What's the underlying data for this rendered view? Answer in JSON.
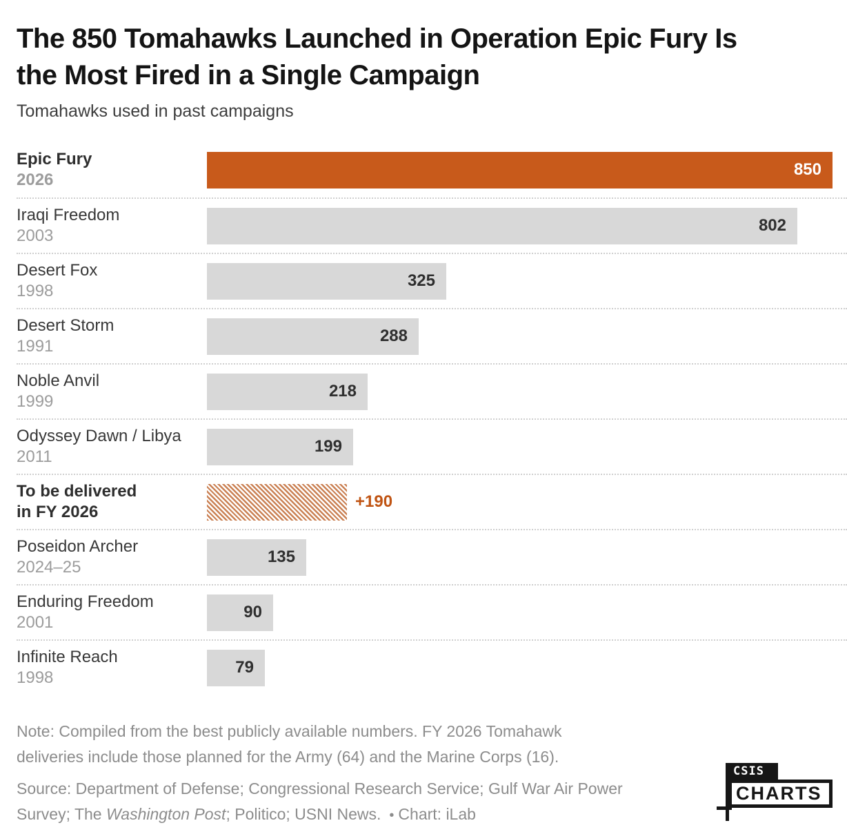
{
  "header": {
    "title_line1": "The 850 Tomahawks Launched in Operation Epic Fury Is",
    "title_line2": "the Most Fired in a Single Campaign",
    "subtitle": "Tomahawks used in past campaigns"
  },
  "chart_data": {
    "type": "bar",
    "orientation": "horizontal",
    "title": "The 850 Tomahawks Launched in Operation Epic Fury Is the Most Fired in a Single Campaign",
    "subtitle": "Tomahawks used in past campaigns",
    "xlim": [
      0,
      850
    ],
    "grid": false,
    "legend": false,
    "rows": [
      {
        "campaign": "Epic Fury",
        "detail": "2026",
        "detail_type": "year",
        "value": 850,
        "value_label": "850",
        "bar": "orange",
        "emphasis": true,
        "value_placement": "inside",
        "value_style": "white"
      },
      {
        "campaign": "Iraqi Freedom",
        "detail": "2003",
        "detail_type": "year",
        "value": 802,
        "value_label": "802",
        "bar": "gray",
        "emphasis": false,
        "value_placement": "inside",
        "value_style": "dark"
      },
      {
        "campaign": "Desert Fox",
        "detail": "1998",
        "detail_type": "year",
        "value": 325,
        "value_label": "325",
        "bar": "gray",
        "emphasis": false,
        "value_placement": "inside",
        "value_style": "dark"
      },
      {
        "campaign": "Desert Storm",
        "detail": "1991",
        "detail_type": "year",
        "value": 288,
        "value_label": "288",
        "bar": "gray",
        "emphasis": false,
        "value_placement": "inside",
        "value_style": "dark"
      },
      {
        "campaign": "Noble Anvil",
        "detail": "1999",
        "detail_type": "year",
        "value": 218,
        "value_label": "218",
        "bar": "gray",
        "emphasis": false,
        "value_placement": "inside",
        "value_style": "dark"
      },
      {
        "campaign": "Odyssey Dawn / Libya",
        "detail": "2011",
        "detail_type": "year",
        "value": 199,
        "value_label": "199",
        "bar": "gray",
        "emphasis": false,
        "value_placement": "inside",
        "value_style": "dark"
      },
      {
        "campaign": "To be delivered",
        "detail": "in FY 2026",
        "detail_type": "label",
        "value": 190,
        "value_label": "+190",
        "bar": "hatch",
        "emphasis": true,
        "value_placement": "outside",
        "value_style": "orange"
      },
      {
        "campaign": "Poseidon Archer",
        "detail": "2024–25",
        "detail_type": "year",
        "value": 135,
        "value_label": "135",
        "bar": "gray",
        "emphasis": false,
        "value_placement": "inside",
        "value_style": "dark"
      },
      {
        "campaign": "Enduring Freedom",
        "detail": "2001",
        "detail_type": "year",
        "value": 90,
        "value_label": "90",
        "bar": "gray",
        "emphasis": false,
        "value_placement": "inside",
        "value_style": "dark"
      },
      {
        "campaign": "Infinite Reach",
        "detail": "1998",
        "detail_type": "year",
        "value": 79,
        "value_label": "79",
        "bar": "gray",
        "emphasis": false,
        "value_placement": "inside",
        "value_style": "dark"
      }
    ]
  },
  "footer": {
    "note_line1": "Note: Compiled from the best publicly available numbers. FY 2026 Tomahawk",
    "note_line2": "deliveries include those planned for the Army (64) and the Marine Corps (16).",
    "source_line1": "Source: Department of Defense; Congressional Research Service; Gulf War Air Power",
    "source_line2_pre": "Survey; The ",
    "source_line2_italic": "Washington Post",
    "source_line2_post": "; Politico; USNI News.",
    "source_bullet": "•",
    "source_credit": "Chart: iLab"
  },
  "logo": {
    "top": "CSIS",
    "bottom": "CHARTS"
  },
  "colors": {
    "accent_orange": "#C85A1B",
    "hatch_orange": "#CA8154",
    "bar_gray": "#D8D8D8",
    "value_dark": "#2F2F2F",
    "value_orange": "#C05413",
    "label_dark": "#383838",
    "year_gray": "#9C9C9C",
    "note_gray": "#8C8C8C",
    "separator_gray": "#CFCFCF",
    "logo_black": "#161616"
  }
}
